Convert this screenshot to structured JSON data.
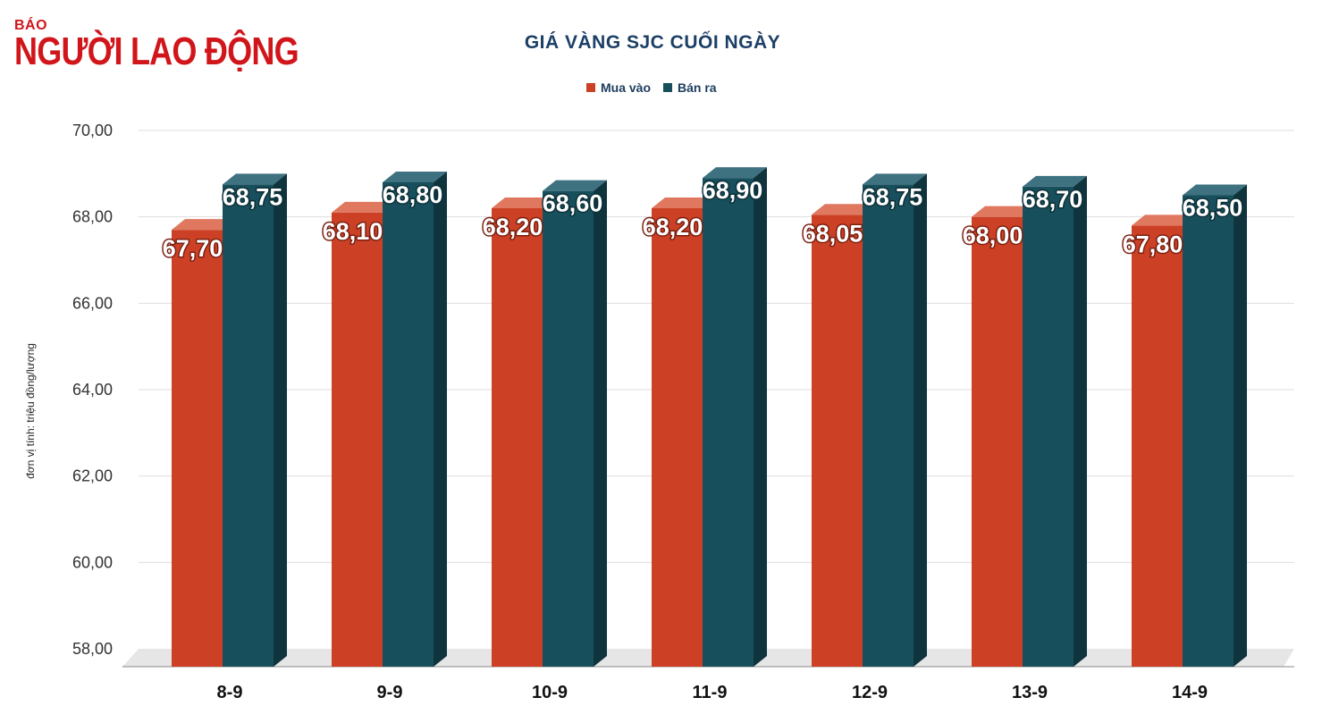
{
  "brand": {
    "top": "BÁO",
    "name": "NGƯỜI LAO ĐỘNG",
    "color": "#d1161b"
  },
  "chart_data": {
    "type": "bar",
    "title": "GIÁ VÀNG SJC CUỐI NGÀY",
    "ylabel": "đơn vị tính: triệu đồng/lượng",
    "xlabel": "",
    "ylim": [
      58,
      70
    ],
    "yticks": [
      "58,00",
      "60,00",
      "62,00",
      "64,00",
      "66,00",
      "68,00",
      "70,00"
    ],
    "categories": [
      "8-9",
      "9-9",
      "10-9",
      "11-9",
      "12-9",
      "13-9",
      "14-9"
    ],
    "series": [
      {
        "name": "Mua vào",
        "color": "#cc4125",
        "values": [
          67.7,
          68.1,
          68.2,
          68.2,
          68.05,
          68.0,
          67.8
        ],
        "labels": [
          "67,70",
          "68,10",
          "68,20",
          "68,20",
          "68,05",
          "68,00",
          "67,80"
        ]
      },
      {
        "name": "Bán ra",
        "color": "#174f5c",
        "values": [
          68.75,
          68.8,
          68.6,
          68.9,
          68.75,
          68.7,
          68.5
        ],
        "labels": [
          "68,75",
          "68,80",
          "68,60",
          "68,90",
          "68,75",
          "68,70",
          "68,50"
        ]
      }
    ],
    "legend_position": "top-center",
    "grid": true
  }
}
